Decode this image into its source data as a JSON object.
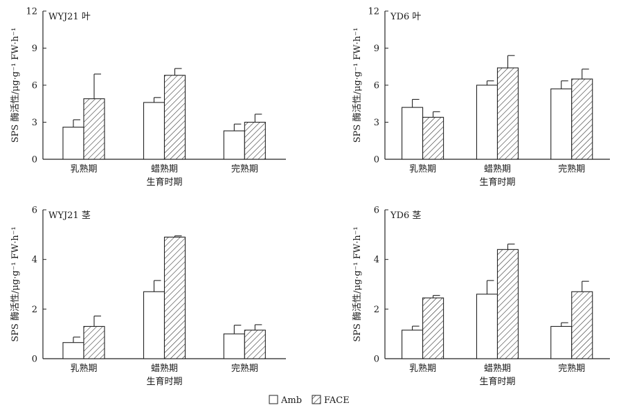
{
  "chart_data": [
    {
      "type": "bar",
      "title": "WYJ21 叶",
      "categories": [
        "乳熟期",
        "蜡熟期",
        "完熟期"
      ],
      "xlabel": "生育时期",
      "ylabel": "SPS 酶活性/μg·g⁻¹ FW·h⁻¹",
      "ylim": [
        0,
        12
      ],
      "yticks": [
        "0",
        "3",
        "6",
        "9",
        "12"
      ],
      "series": [
        {
          "name": "Amb",
          "values": [
            2.6,
            4.6,
            2.3
          ],
          "errors": [
            0.6,
            0.4,
            0.55
          ]
        },
        {
          "name": "FACE",
          "values": [
            4.9,
            6.8,
            3.0
          ],
          "errors": [
            2.0,
            0.55,
            0.65
          ]
        }
      ]
    },
    {
      "type": "bar",
      "title": "YD6 叶",
      "categories": [
        "乳熟期",
        "蜡熟期",
        "完熟期"
      ],
      "xlabel": "生育时期",
      "ylabel": "SPS 酶活性/μg·g⁻¹ FW·h⁻¹",
      "ylim": [
        0,
        12
      ],
      "yticks": [
        "0",
        "3",
        "6",
        "9",
        "12"
      ],
      "series": [
        {
          "name": "Amb",
          "values": [
            4.2,
            6.0,
            5.7
          ],
          "errors": [
            0.65,
            0.35,
            0.65
          ]
        },
        {
          "name": "FACE",
          "values": [
            3.4,
            7.4,
            6.5
          ],
          "errors": [
            0.45,
            1.0,
            0.8
          ]
        }
      ]
    },
    {
      "type": "bar",
      "title": "WYJ21 茎",
      "categories": [
        "乳熟期",
        "蜡熟期",
        "完熟期"
      ],
      "xlabel": "生育时期",
      "ylabel": "SPS 酶活性/μg·g⁻¹ FW·h⁻¹",
      "ylim": [
        0,
        6
      ],
      "yticks": [
        "0",
        "2",
        "4",
        "6"
      ],
      "series": [
        {
          "name": "Amb",
          "values": [
            0.65,
            2.7,
            1.0
          ],
          "errors": [
            0.22,
            0.45,
            0.35
          ]
        },
        {
          "name": "FACE",
          "values": [
            1.3,
            4.9,
            1.15
          ],
          "errors": [
            0.42,
            0.05,
            0.22
          ]
        }
      ]
    },
    {
      "type": "bar",
      "title": "YD6 茎",
      "categories": [
        "乳熟期",
        "蜡熟期",
        "完熟期"
      ],
      "xlabel": "生育时期",
      "ylabel": "SPS 酶活性/μg·g⁻¹ FW·h⁻¹",
      "ylim": [
        0,
        6
      ],
      "yticks": [
        "0",
        "2",
        "4",
        "6"
      ],
      "series": [
        {
          "name": "Amb",
          "values": [
            1.15,
            2.6,
            1.3
          ],
          "errors": [
            0.16,
            0.55,
            0.15
          ]
        },
        {
          "name": "FACE",
          "values": [
            2.45,
            4.4,
            2.7
          ],
          "errors": [
            0.1,
            0.22,
            0.42
          ]
        }
      ]
    }
  ],
  "legend": {
    "items": [
      {
        "label": "Amb",
        "fill": "plain"
      },
      {
        "label": "FACE",
        "fill": "hatched"
      }
    ]
  },
  "colors": {
    "bar_edge": "#222222",
    "bar_fill": "#ffffff",
    "axis": "#222222"
  }
}
